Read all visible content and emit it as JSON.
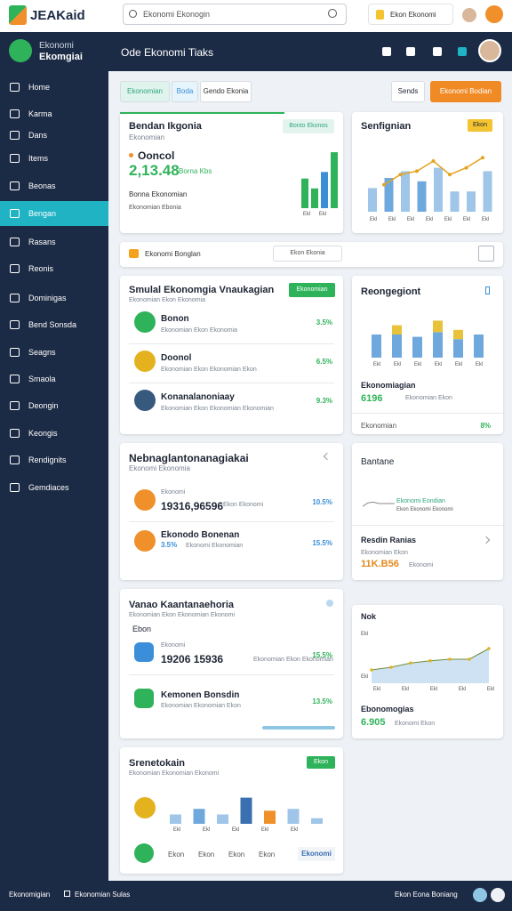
{
  "topbar": {
    "logo": "JEAKaid",
    "search": "Ekonomi Ekonogin",
    "notice": "Ekon Ekonomi"
  },
  "sidebar": {
    "title": "Ekonomi",
    "subtitle": "Ekomgiai",
    "active": 5,
    "items": [
      "Home",
      "Karma",
      "Dans",
      "Items",
      "Beonas",
      "Bengan",
      "Rasans",
      "Reonis",
      "Dominigas",
      "Bend Sonsda",
      "Seagns",
      "Smaola",
      "Deongin",
      "Keongis",
      "Rendignits",
      "Gemdiaces"
    ]
  },
  "header": {
    "title": "Ode Ekonomi Tiaks"
  },
  "tabs": [
    "Ekonomian",
    "Boda",
    "Gendo Ekonia"
  ],
  "actions": [
    "Sends",
    "Ekonomi Bodian"
  ],
  "cards": {
    "summary": {
      "title": "Bendan Ikgonia",
      "subtitle": "Ekonomian",
      "label": "Ooncol",
      "value": "2,13.48",
      "delta": "Borna Kbs",
      "badge": "Bonto Ekonos",
      "note1": "Bonna Ekonomian",
      "note2": "Ekonomian Ebonia",
      "chart": {
        "ylim": [
          0,
          100
        ],
        "values": [
          45,
          30,
          55,
          85
        ],
        "colors": [
          "#2fb35a",
          "#2fb35a",
          "#3a8fd8",
          "#2fb35a"
        ],
        "xlabels": [
          "Ekl",
          "Ekl"
        ]
      }
    },
    "trend": {
      "title": "Senfignian",
      "badge": "Ekon",
      "chart": {
        "ylim": [
          0,
          100
        ],
        "values": [
          35,
          50,
          60,
          45,
          65,
          30,
          30,
          60
        ],
        "colors": [
          "#9fc5e8",
          "#6fa8dc",
          "#9fc5e8",
          "#6fa8dc",
          "#9fc5e8",
          "#9fc5e8",
          "#9fc5e8",
          "#9fc5e8"
        ],
        "line": [
          40,
          55,
          60,
          75,
          55,
          65,
          80
        ],
        "xlabels": [
          "Ekl",
          "Ekl",
          "Ekl",
          "Ekl",
          "Ekl",
          "Ekl",
          "Ekl"
        ]
      }
    },
    "strip": {
      "text": "Ekonomi Bonglan",
      "button": "Ekon Ekonia"
    },
    "list": {
      "title": "Smulal Ekonomgia Vnaukagian",
      "subtitle": "Ekonomian Ekon Ekonomia",
      "button": "Ekonomian",
      "items": [
        {
          "name": "Bonon",
          "sub": "Ekonomian Ekon Ekonomia",
          "pct": "3.5%",
          "color": "#2fb35a"
        },
        {
          "name": "Doonol",
          "sub": "Ekonomian Ekon Ekonomian Ekon",
          "pct": "6.5%",
          "color": "#e3b21e"
        },
        {
          "name": "Konanalanoniaay",
          "sub": "Ekonomian Ekon Ekonomian Ekonomian",
          "pct": "9.3%",
          "color": "#37597d"
        }
      ]
    },
    "stacked": {
      "title": "Reongegiont",
      "label": "Ekonomiagian",
      "value": "6196",
      "sub": "Ekonomian Ekon",
      "foot": "Ekonomian",
      "pct": "8%",
      "chart": {
        "ylim": [
          0,
          100
        ],
        "base": [
          50,
          50,
          45,
          55,
          40,
          50
        ],
        "top": [
          0,
          20,
          0,
          25,
          20,
          0
        ],
        "xlabels": [
          "Ekl",
          "Ekl",
          "Ekl",
          "Ekl",
          "Ekl",
          "Ekl"
        ]
      }
    },
    "values": {
      "title": "Nebnaglantonanagiakai",
      "subtitle": "Ekonomi Ekonomia",
      "items": [
        {
          "label": "Ekonomi",
          "value": "19316,96596",
          "sub": "Ekon Ekonomi",
          "pct": "10.5%"
        },
        {
          "label": "Ekonodo Bonenan",
          "value": "3.5%",
          "sub": "Ekonomi Ekonomian",
          "pct": "15.5%"
        }
      ]
    },
    "spark": {
      "title": "Bantane",
      "legend": "Ekonomi Eondian",
      "legend2": "Ekon Ekonomi Ekonomi",
      "name": "Resdin Ranias",
      "sub": "Ekonomian Ekon",
      "value": "11K.B56",
      "note": "Ekonomi",
      "chart": {
        "ylim": [
          0,
          100
        ],
        "values": [
          30,
          55,
          60,
          50,
          50,
          50,
          50
        ]
      }
    },
    "balance": {
      "title": "Vanao Kaantanaehoria",
      "subtitle": "Ekonomian Ekon Ekonomian Ekonomi",
      "group": "Ebon",
      "items": [
        {
          "label": "Ekonomi",
          "value": "19206 15936",
          "sub": "Ekonomian Ekon Ekonomian",
          "pct": "15.5%",
          "color": "#3a8fd8"
        },
        {
          "label": "Kemonen Bonsdin",
          "value": "",
          "sub": "Ekonomian Ekonomian Ekon",
          "pct": "13.5%",
          "color": "#2fb35a"
        }
      ]
    },
    "area": {
      "title": "Nok",
      "name": "Ebonomogias",
      "value": "6.905",
      "sub": "Ekonomi Ekon",
      "chart": {
        "ylim": [
          0,
          100
        ],
        "values": [
          25,
          30,
          38,
          42,
          45,
          45,
          65
        ],
        "yticks": [
          "Ekl",
          "Ekl"
        ],
        "xlabels": [
          "Ekl",
          "Ekl",
          "Ekl",
          "Ekl",
          "Ekl"
        ]
      }
    },
    "mix": {
      "title": "Srenetokain",
      "subtitle": "Ekonomian Ekonomian Ekonomi",
      "button": "Ekon",
      "badge": "Ekonomi",
      "foot": [
        "Ekon",
        "Ekon",
        "Ekon",
        "Ekon"
      ],
      "chart": {
        "ylim": [
          0,
          100
        ],
        "values": [
          25,
          40,
          25,
          70,
          35,
          40,
          15
        ],
        "colors": [
          "#9fc5e8",
          "#6fa8dc",
          "#9fc5e8",
          "#3a6fb0",
          "#f0902a",
          "#9fc5e8",
          "#9fc5e8"
        ],
        "xlabels": [
          "Ekl",
          "Ekl",
          "Ekl",
          "Ekl",
          "Ekl"
        ]
      }
    }
  },
  "footer": {
    "left": "Ekonomigian",
    "mid": "Ekonomian Sulas",
    "right": "Ekon Eona Boniang"
  }
}
